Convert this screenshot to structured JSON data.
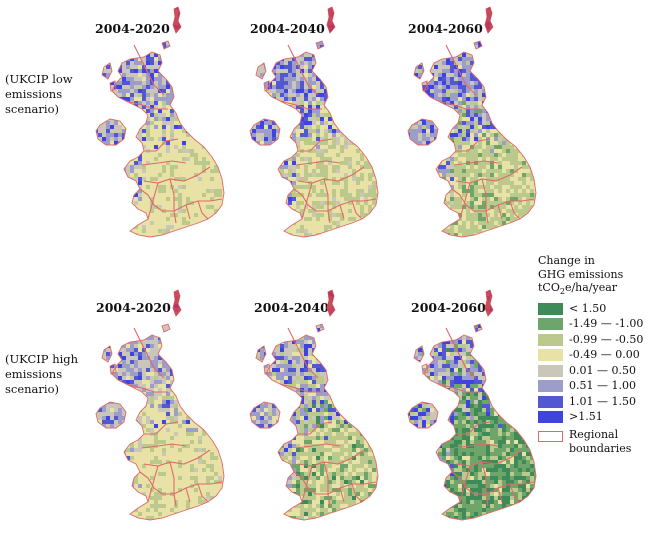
{
  "map_titles": {
    "low": [
      "2004-2020",
      "2004-2040",
      "2004-2060"
    ],
    "high": [
      "2004-2020",
      "2004-2040",
      "2004-2060"
    ]
  },
  "scenarios": {
    "low": "(UKCIP low emissions scenario)",
    "high": "(UKCIP high emissions scenario)"
  },
  "legend": {
    "title_line1": "Change in",
    "title_line2": "GHG emissions",
    "title_line3_prefix": "tCO",
    "title_line3_sub": "2",
    "title_line3_suffix": "e/ha/year",
    "classes": [
      {
        "label": "< 1.50",
        "color": "#3f8a59"
      },
      {
        "label": "-1.49 — -1.00",
        "color": "#6ea56a"
      },
      {
        "label": "-0.99 — -0.50",
        "color": "#bcc98c"
      },
      {
        "label": "-0.49 —  0.00",
        "color": "#e8e2a6"
      },
      {
        "label": " 0.01 —  0.50",
        "color": "#cac6b9"
      },
      {
        "label": " 0.51 —  1.00",
        "color": "#9c9dc9"
      },
      {
        "label": " 1.01 —  1.50",
        "color": "#5257d2"
      },
      {
        "label": ">1.51",
        "color": "#3e44dd"
      }
    ],
    "boundary_label": "Regional boundaries",
    "boundary_color": "#e0696a"
  }
}
